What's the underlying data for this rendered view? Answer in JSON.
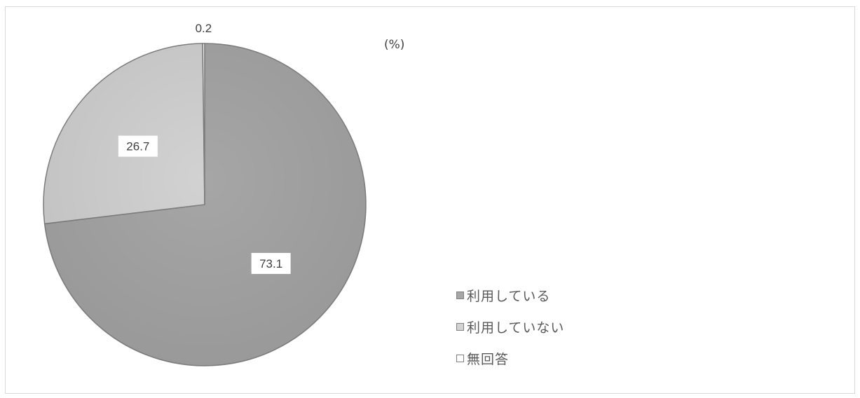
{
  "chart_data": {
    "type": "pie",
    "unit_label": "(%)",
    "slices": [
      {
        "label": "利用している",
        "value": 73.1,
        "display": "73.1",
        "color": "#a6a6a6"
      },
      {
        "label": "利用していない",
        "value": 26.7,
        "display": "26.7",
        "color": "#d2d2d2"
      },
      {
        "label": "無回答",
        "value": 0.2,
        "display": "0.2",
        "color": "#ffffff"
      }
    ],
    "legend_position": "bottom-right"
  },
  "colors": {
    "stroke": "#808080",
    "label_bg": "#ffffff",
    "frame_border": "#d9d9d9"
  }
}
